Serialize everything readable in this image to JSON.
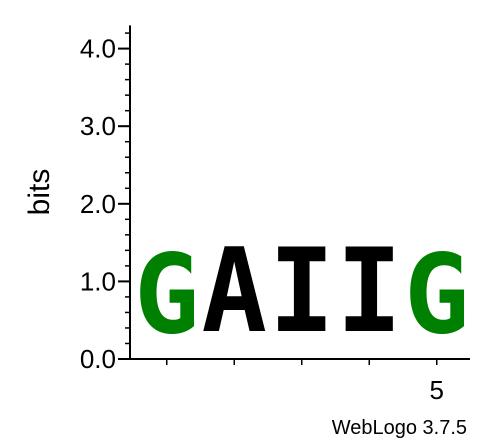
{
  "chart_data": {
    "type": "sequence-logo",
    "ylabel": "bits",
    "ylim": [
      0,
      4.3
    ],
    "yticks": [
      {
        "value": 0,
        "label": "0.0"
      },
      {
        "value": 1,
        "label": "1.0"
      },
      {
        "value": 2,
        "label": "2.0"
      },
      {
        "value": 3,
        "label": "3.0"
      },
      {
        "value": 4,
        "label": "4.0"
      }
    ],
    "positions": [
      1,
      2,
      3,
      4,
      5
    ],
    "xtick_labels": [
      {
        "position": 5,
        "label": "5"
      }
    ],
    "stacks": [
      {
        "position": 1,
        "letter": "G",
        "bits": 1.65,
        "color": "#008000"
      },
      {
        "position": 2,
        "letter": "A",
        "bits": 1.75,
        "color": "#000000"
      },
      {
        "position": 3,
        "letter": "I",
        "bits": 1.75,
        "color": "#000000"
      },
      {
        "position": 4,
        "letter": "I",
        "bits": 1.75,
        "color": "#000000"
      },
      {
        "position": 5,
        "letter": "G",
        "bits": 1.65,
        "color": "#008000"
      }
    ]
  },
  "credit": "WebLogo 3.7.5"
}
